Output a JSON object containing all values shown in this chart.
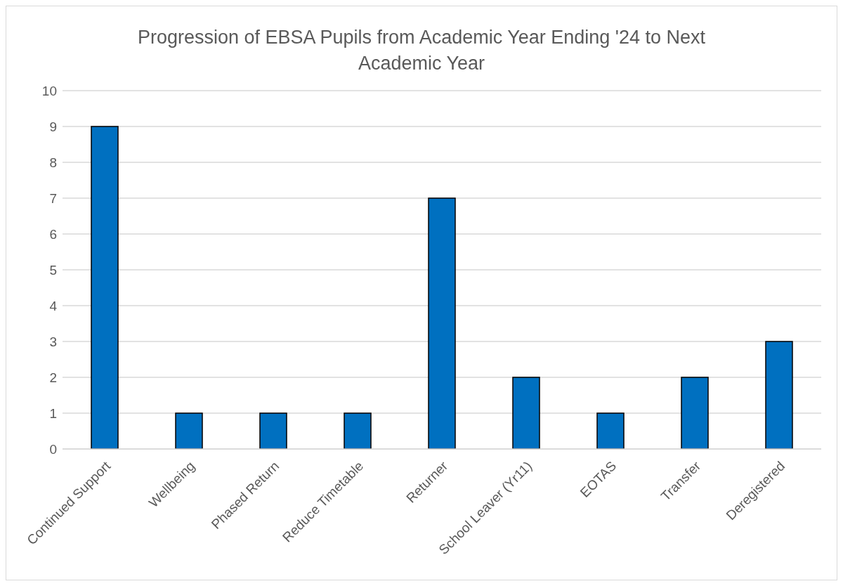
{
  "chart_data": {
    "type": "bar",
    "title": "Progression of EBSA Pupils from Academic Year Ending '24 to Next Academic Year",
    "categories": [
      "Continued Support",
      "Wellbeing",
      "Phased Return",
      "Reduce Timetable",
      "Returner",
      "School Leaver (Yr11)",
      "EOTAS",
      "Transfer",
      "Deregistered"
    ],
    "values": [
      9,
      1,
      1,
      1,
      7,
      2,
      1,
      2,
      3
    ],
    "color": "#0070c0",
    "ylim": [
      0,
      10
    ],
    "yticks": [
      0,
      1,
      2,
      3,
      4,
      5,
      6,
      7,
      8,
      9,
      10
    ],
    "grid": "y"
  }
}
